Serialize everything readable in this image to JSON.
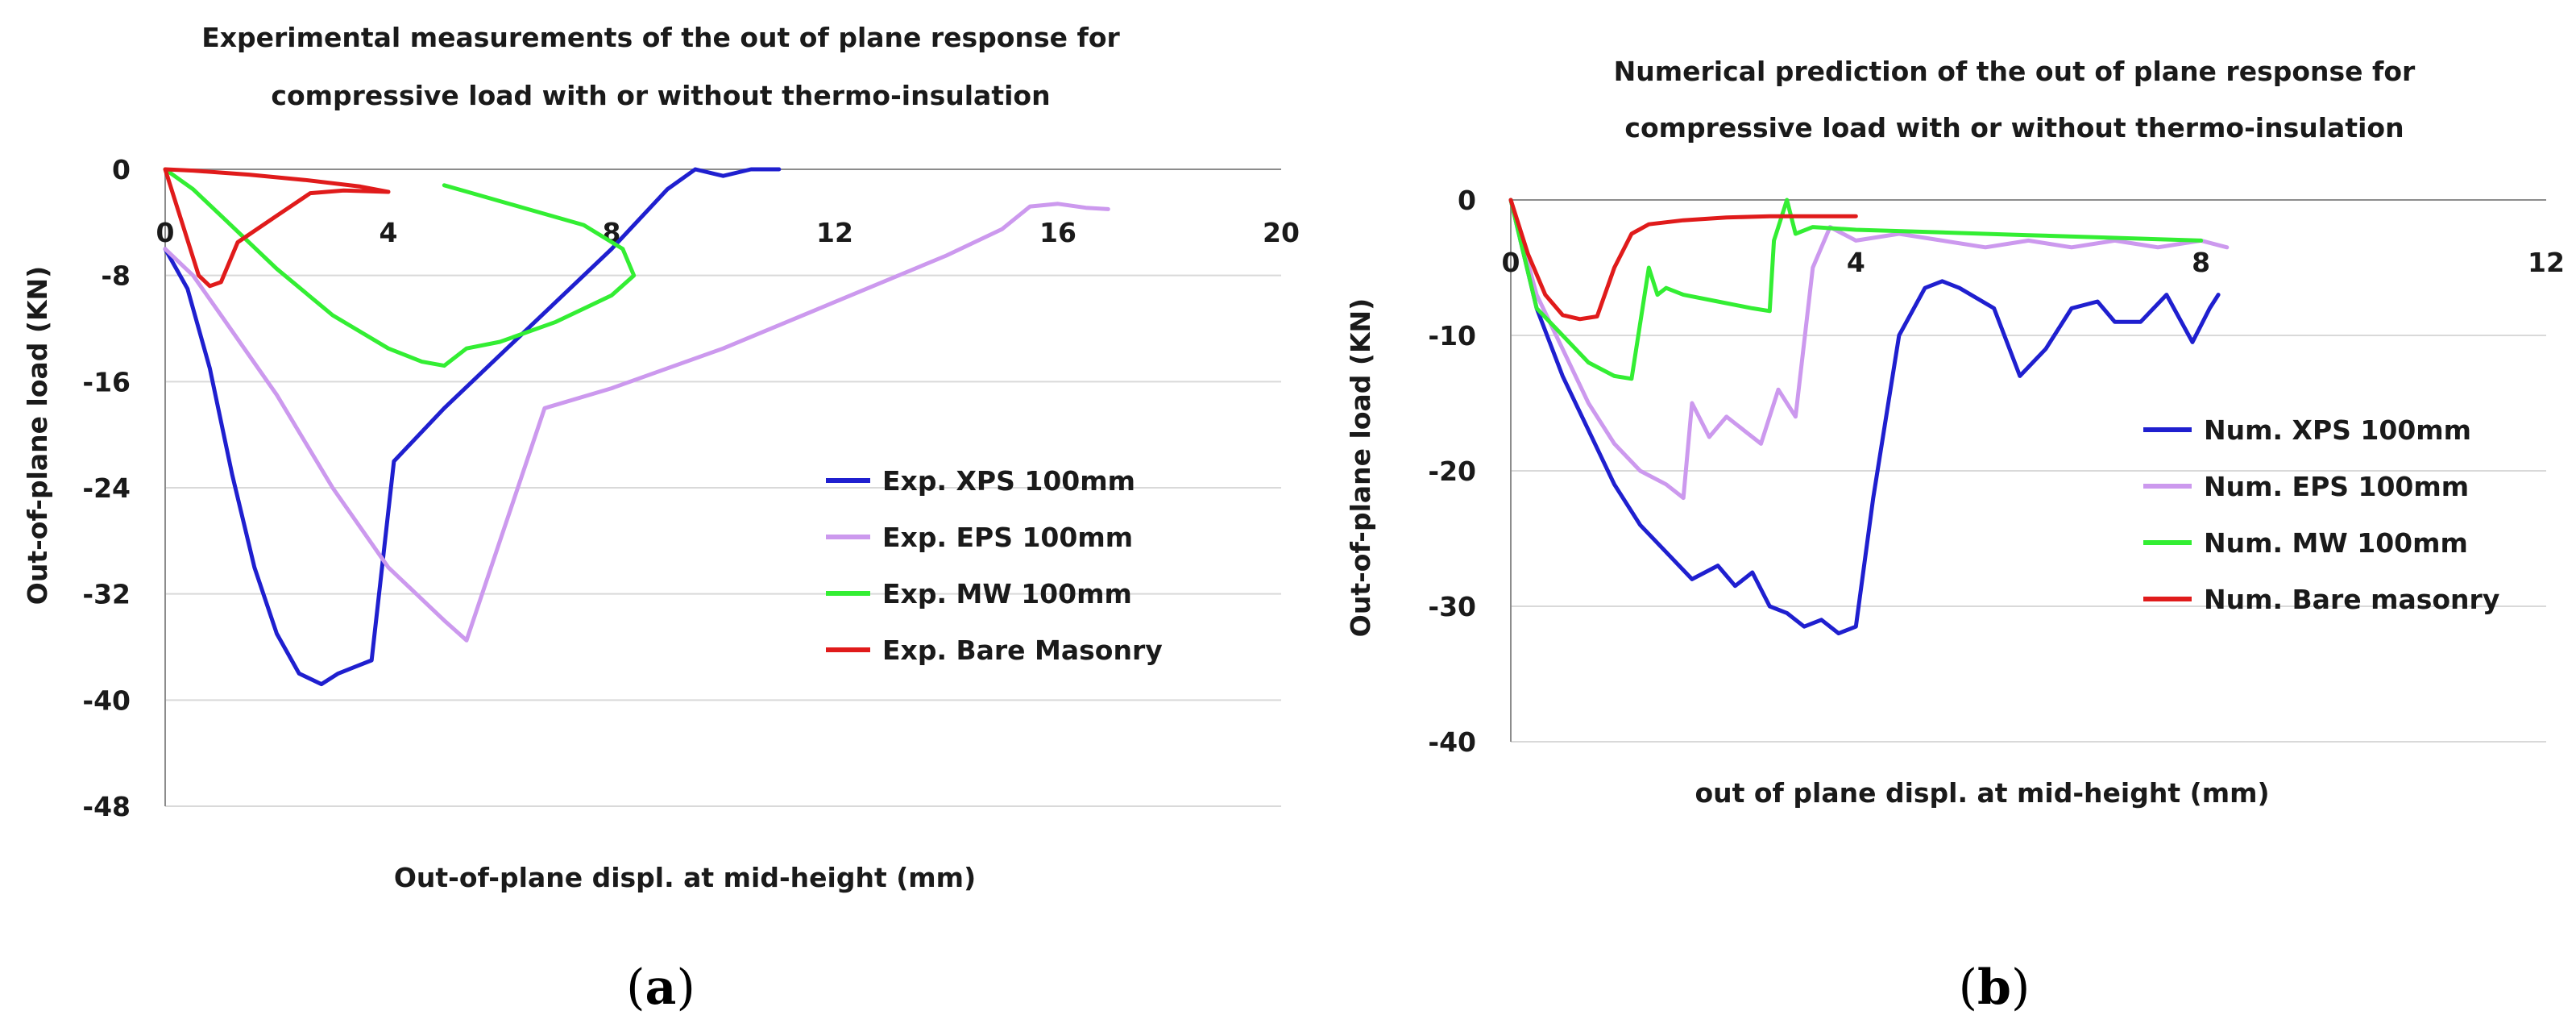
{
  "chart_data": [
    {
      "type": "line",
      "panel_label": "a",
      "title_lines": [
        "Experimental measurements of the out of plane response for",
        "compressive load with or without thermo-insulation"
      ],
      "xlabel": "Out-of-plane displ. at mid-height (mm)",
      "ylabel": "Out-of-plane load (KN)",
      "xlim": [
        0,
        20
      ],
      "ylim": [
        -48,
        0
      ],
      "xticks": [
        0,
        4,
        8,
        12,
        16,
        20
      ],
      "yticks": [
        0,
        -8,
        -16,
        -24,
        -32,
        -40,
        -48
      ],
      "grid": "horizontal",
      "legend_position": "right",
      "series": [
        {
          "name": "Exp. XPS 100mm",
          "color": "#1f1fcf",
          "x": [
            0,
            0.4,
            0.8,
            1.2,
            1.6,
            2.0,
            2.4,
            2.8,
            3.1,
            3.4,
            3.7,
            4.1,
            5.0,
            6.0,
            7.0,
            8.0,
            9.0,
            9.5,
            10.0,
            10.5,
            11.0
          ],
          "y": [
            -6,
            -9,
            -15,
            -23,
            -30,
            -35,
            -38,
            -38.8,
            -38,
            -37.5,
            -37,
            -22,
            -18,
            -14,
            -10,
            -6,
            -1.5,
            0,
            -0.5,
            0,
            0
          ]
        },
        {
          "name": "Exp. EPS 100mm",
          "color": "#cc99ee",
          "x": [
            0,
            0.5,
            1.0,
            2.0,
            3.0,
            4.0,
            5.0,
            5.4,
            6.0,
            6.8,
            8.0,
            10.0,
            12.0,
            14.0,
            15.0,
            15.5,
            16.0,
            16.5,
            16.9
          ],
          "y": [
            -6,
            -8,
            -11,
            -17,
            -24,
            -30,
            -34,
            -35.5,
            -28,
            -18,
            -16.5,
            -13.5,
            -10,
            -6.5,
            -4.5,
            -2.8,
            -2.6,
            -2.9,
            -3.0
          ]
        },
        {
          "name": "Exp. MW 100mm",
          "color": "#33ee33",
          "x": [
            0,
            0.5,
            1.0,
            2.0,
            3.0,
            4.0,
            4.6,
            5.0,
            5.4,
            6.0,
            7.0,
            8.0,
            8.4,
            8.2,
            7.5,
            6.5,
            5.5,
            5.0
          ],
          "y": [
            0,
            -1.5,
            -3.5,
            -7.5,
            -11,
            -13.5,
            -14.5,
            -14.8,
            -13.5,
            -13,
            -11.5,
            -9.5,
            -8,
            -6,
            -4.2,
            -3,
            -1.8,
            -1.2
          ]
        },
        {
          "name": "Exp. Bare Masonry",
          "color": "#e01b1b",
          "x": [
            0,
            0.3,
            0.6,
            0.8,
            1.0,
            1.3,
            2.0,
            2.6,
            3.2,
            4.0,
            3.5,
            2.5,
            1.5,
            0.5,
            0
          ],
          "y": [
            0,
            -4,
            -8,
            -8.8,
            -8.5,
            -5.5,
            -3.5,
            -1.8,
            -1.6,
            -1.7,
            -1.3,
            -0.8,
            -0.4,
            -0.1,
            0
          ]
        }
      ]
    },
    {
      "type": "line",
      "panel_label": "b",
      "title_lines": [
        "Numerical prediction of the out of plane response for",
        "compressive load with or without thermo-insulation"
      ],
      "xlabel": "out of plane displ. at mid-height (mm)",
      "ylabel": "Out-of-plane load (KN)",
      "xlim": [
        0,
        12
      ],
      "ylim": [
        -40,
        0
      ],
      "xticks": [
        0,
        4,
        8,
        12
      ],
      "yticks": [
        0,
        -10,
        -20,
        -30,
        -40
      ],
      "grid": "horizontal",
      "legend_position": "right",
      "series": [
        {
          "name": "Num. XPS 100mm",
          "color": "#1f1fcf",
          "x": [
            0,
            0.3,
            0.6,
            0.9,
            1.2,
            1.5,
            1.8,
            2.1,
            2.4,
            2.6,
            2.8,
            3.0,
            3.2,
            3.4,
            3.6,
            3.8,
            4.0,
            4.2,
            4.5,
            4.8,
            5.0,
            5.2,
            5.6,
            5.9,
            6.2,
            6.5,
            6.8,
            7.0,
            7.3,
            7.6,
            7.9,
            8.1,
            8.2
          ],
          "y": [
            0,
            -8,
            -13,
            -17,
            -21,
            -24,
            -26,
            -28,
            -27,
            -28.5,
            -27.5,
            -30,
            -30.5,
            -31.5,
            -31,
            -32,
            -31.5,
            -22,
            -10,
            -6.5,
            -6,
            -6.5,
            -8,
            -13,
            -11,
            -8,
            -7.5,
            -9,
            -9,
            -7,
            -10.5,
            -8,
            -7
          ]
        },
        {
          "name": "Num. EPS 100mm",
          "color": "#cc99ee",
          "x": [
            0,
            0.3,
            0.6,
            0.9,
            1.2,
            1.5,
            1.8,
            2.0,
            2.1,
            2.3,
            2.5,
            2.7,
            2.9,
            3.1,
            3.3,
            3.5,
            3.7,
            4.0,
            4.5,
            5.0,
            5.5,
            6.0,
            6.5,
            7.0,
            7.5,
            8.0,
            8.3
          ],
          "y": [
            0,
            -7,
            -11,
            -15,
            -18,
            -20,
            -21,
            -22,
            -15,
            -17.5,
            -16,
            -17,
            -18,
            -14,
            -16,
            -5,
            -2,
            -3,
            -2.5,
            -3,
            -3.5,
            -3,
            -3.5,
            -3,
            -3.5,
            -3,
            -3.5
          ]
        },
        {
          "name": "Num. MW 100mm",
          "color": "#33ee33",
          "x": [
            0,
            0.3,
            0.6,
            0.9,
            1.2,
            1.4,
            1.6,
            1.7,
            1.8,
            2.0,
            2.4,
            2.8,
            3.0,
            3.05,
            3.1,
            3.2,
            3.3,
            3.5,
            4.0,
            5.0,
            6.0,
            7.0,
            8.0
          ],
          "y": [
            0,
            -8,
            -10,
            -12,
            -13,
            -13.2,
            -5,
            -7,
            -6.5,
            -7,
            -7.5,
            -8,
            -8.2,
            -3,
            -2,
            0,
            -2.5,
            -2,
            -2.2,
            -2.4,
            -2.6,
            -2.8,
            -3
          ]
        },
        {
          "name": "Num. Bare masonry",
          "color": "#e01b1b",
          "x": [
            0,
            0.2,
            0.4,
            0.6,
            0.8,
            1.0,
            1.2,
            1.4,
            1.6,
            2.0,
            2.5,
            3.0,
            3.5,
            4.0
          ],
          "y": [
            0,
            -4,
            -7,
            -8.5,
            -8.8,
            -8.6,
            -5,
            -2.5,
            -1.8,
            -1.5,
            -1.3,
            -1.2,
            -1.2,
            -1.2
          ]
        }
      ]
    }
  ]
}
